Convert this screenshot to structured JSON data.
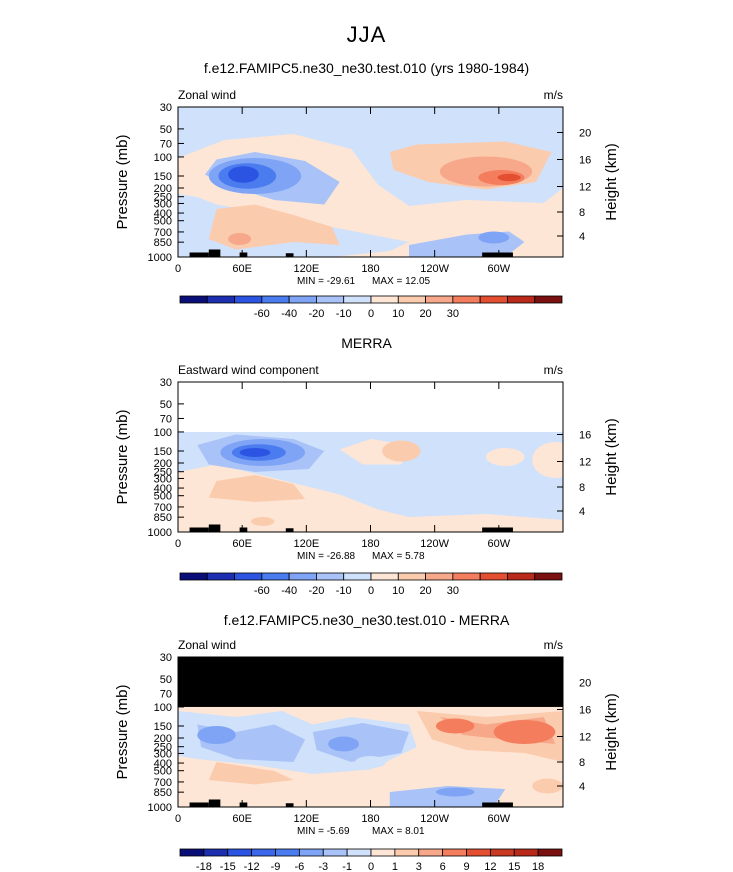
{
  "page": {
    "title": "JJA"
  },
  "chart_data": [
    {
      "type": "heatmap",
      "title": "f.e12.FAMIPC5.ne30_ne30.test.010 (yrs 1980-1984)",
      "variable": "Zonal wind",
      "units": "m/s",
      "ylabel": "Pressure (mb)",
      "ylabel_right": "Height (km)",
      "yticks": [
        "30",
        "50",
        "70",
        "100",
        "150",
        "200",
        "250",
        "300",
        "400",
        "500",
        "700",
        "850",
        "1000"
      ],
      "height_ticks": [
        "20",
        "16",
        "12",
        "8",
        "4"
      ],
      "xticks": [
        "0",
        "60E",
        "120E",
        "180",
        "120W",
        "60W"
      ],
      "min_text": "MIN = -29.61",
      "max_text": "MAX = 12.05",
      "min": -29.61,
      "max": 12.05,
      "colorbar_ticks": [
        "-60",
        "-40",
        "-20",
        "-10",
        "0",
        "10",
        "20",
        "30"
      ],
      "colorbar_colors": [
        "#0a0e78",
        "#1d2fb0",
        "#2c54e3",
        "#4a7cf0",
        "#7fa4f5",
        "#a9c3f8",
        "#d0e1fb",
        "#fde6d6",
        "#fbcbae",
        "#f8a88a",
        "#f37d5c",
        "#e44f32",
        "#b92a1a",
        "#7a1010"
      ]
    },
    {
      "type": "heatmap",
      "title": "MERRA",
      "variable": "Eastward wind component",
      "units": "m/s",
      "ylabel": "Pressure (mb)",
      "ylabel_right": "Height (km)",
      "yticks": [
        "30",
        "50",
        "70",
        "100",
        "150",
        "200",
        "250",
        "300",
        "400",
        "500",
        "700",
        "850",
        "1000"
      ],
      "height_ticks": [
        "16",
        "12",
        "8",
        "4"
      ],
      "xticks": [
        "0",
        "60E",
        "120E",
        "180",
        "120W",
        "60W"
      ],
      "min_text": "MIN = -26.88",
      "max_text": "MAX =   5.78",
      "min": -26.88,
      "max": 5.78,
      "colorbar_ticks": [
        "-60",
        "-40",
        "-20",
        "-10",
        "0",
        "10",
        "20",
        "30"
      ],
      "colorbar_colors": [
        "#0a0e78",
        "#1d2fb0",
        "#2c54e3",
        "#4a7cf0",
        "#7fa4f5",
        "#a9c3f8",
        "#d0e1fb",
        "#fde6d6",
        "#fbcbae",
        "#f8a88a",
        "#f37d5c",
        "#e44f32",
        "#b92a1a",
        "#7a1010"
      ]
    },
    {
      "type": "heatmap",
      "title": "f.e12.FAMIPC5.ne30_ne30.test.010 - MERRA",
      "variable": "Zonal wind",
      "units": "m/s",
      "ylabel": "Pressure (mb)",
      "ylabel_right": "Height (km)",
      "yticks": [
        "30",
        "50",
        "70",
        "100",
        "150",
        "200",
        "250",
        "300",
        "400",
        "500",
        "700",
        "850",
        "1000"
      ],
      "height_ticks": [
        "20",
        "16",
        "12",
        "8",
        "4"
      ],
      "xticks": [
        "0",
        "60E",
        "120E",
        "180",
        "120W",
        "60W"
      ],
      "min_text": "MIN = -5.69",
      "max_text": "MAX =   8.01",
      "min": -5.69,
      "max": 8.01,
      "colorbar_ticks": [
        "-18",
        "-15",
        "-12",
        "-9",
        "-6",
        "-3",
        "-1",
        "0",
        "1",
        "3",
        "6",
        "9",
        "12",
        "15",
        "18"
      ],
      "colorbar_colors": [
        "#0a0e78",
        "#1d2fb0",
        "#2c54e3",
        "#3b68ea",
        "#4a7cf0",
        "#7fa4f5",
        "#a9c3f8",
        "#d0e1fb",
        "#fde6d6",
        "#fbcbae",
        "#f8a88a",
        "#f37d5c",
        "#e44f32",
        "#c83a22",
        "#b92a1a",
        "#7a1010"
      ]
    }
  ]
}
